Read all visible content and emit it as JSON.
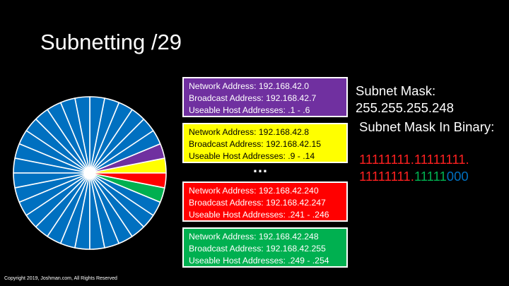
{
  "slide": {
    "title": "Subnetting /29",
    "copyright": "Copyright 2019, Joshman.com, All Rights Reserved"
  },
  "pie": {
    "slice_count": 32,
    "colors": {
      "default": "#0070c0",
      "purple": "#7030a0",
      "yellow": "#ffff00",
      "red": "#ff0000",
      "green": "#00b050",
      "divider": "#ffffff"
    },
    "highlighted_slices": {
      "first": "purple",
      "second": "yellow",
      "second_to_last": "red",
      "last": "green"
    }
  },
  "subnets": [
    {
      "color": "purple",
      "network": "Network Address: 192.168.42.0",
      "broadcast": "Broadcast Address: 192.168.42.7",
      "hosts": "Useable Host Addresses: .1 - .6"
    },
    {
      "color": "yellow",
      "network": "Network Address: 192.168.42.8",
      "broadcast": "Broadcast Address: 192.168.42.15",
      "hosts": "Useable Host Addresses: .9 - .14"
    },
    {
      "color": "red",
      "network": "Network Address: 192.168.42.240",
      "broadcast": "Broadcast Address: 192.168.42.247",
      "hosts": "Useable Host Addresses: .241 - .246"
    },
    {
      "color": "green",
      "network": "Network Address: 192.168.42.248",
      "broadcast": "Broadcast Address: 192.168.42.255",
      "hosts": "Useable Host Addresses: .249 - .254"
    }
  ],
  "ellipsis": "…",
  "mask": {
    "label": "Subnet Mask:",
    "value": "255.255.255.248",
    "binary_label": "Subnet Mask In Binary:",
    "binary_line1_red": "11111111.11111111.",
    "binary_line2_red": "11111111.",
    "binary_line2_green": "11111",
    "binary_line2_blue": "000"
  }
}
